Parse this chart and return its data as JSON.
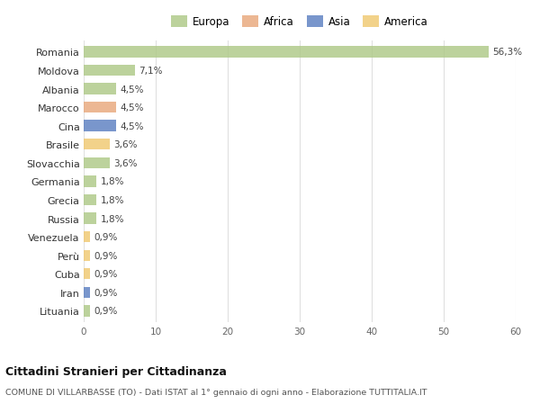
{
  "countries": [
    "Romania",
    "Moldova",
    "Albania",
    "Marocco",
    "Cina",
    "Brasile",
    "Slovacchia",
    "Germania",
    "Grecia",
    "Russia",
    "Venezuela",
    "Perù",
    "Cuba",
    "Iran",
    "Lituania"
  ],
  "values": [
    56.3,
    7.1,
    4.5,
    4.5,
    4.5,
    3.6,
    3.6,
    1.8,
    1.8,
    1.8,
    0.9,
    0.9,
    0.9,
    0.9,
    0.9
  ],
  "labels": [
    "56,3%",
    "7,1%",
    "4,5%",
    "4,5%",
    "4,5%",
    "3,6%",
    "3,6%",
    "1,8%",
    "1,8%",
    "1,8%",
    "0,9%",
    "0,9%",
    "0,9%",
    "0,9%",
    "0,9%"
  ],
  "colors": [
    "#aec987",
    "#aec987",
    "#aec987",
    "#e8a87c",
    "#5b7fc1",
    "#f0c870",
    "#aec987",
    "#aec987",
    "#aec987",
    "#aec987",
    "#f0c870",
    "#f0c870",
    "#f0c870",
    "#5b7fc1",
    "#aec987"
  ],
  "legend_labels": [
    "Europa",
    "Africa",
    "Asia",
    "America"
  ],
  "legend_colors": [
    "#aec987",
    "#e8a87c",
    "#5b7fc1",
    "#f0c870"
  ],
  "xlim": [
    0,
    60
  ],
  "xticks": [
    0,
    10,
    20,
    30,
    40,
    50,
    60
  ],
  "title": "Cittadini Stranieri per Cittadinanza",
  "subtitle": "COMUNE DI VILLARBASSE (TO) - Dati ISTAT al 1° gennaio di ogni anno - Elaborazione TUTTITALIA.IT",
  "bg_color": "#ffffff",
  "grid_color": "#e0e0e0",
  "bar_alpha": 0.82
}
